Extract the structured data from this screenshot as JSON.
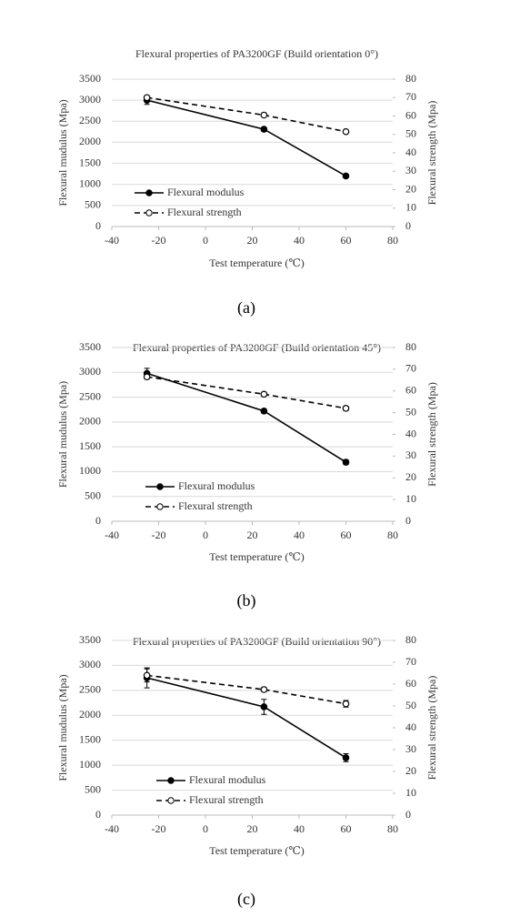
{
  "chart_data": [
    {
      "type": "line",
      "title": "Flexural properties of PA3200GF (Build orientation 0°)",
      "caption": "(a)",
      "x_label": "Test temperature (℃)",
      "y_label": "Flexural mudulus (Mpa)",
      "y2_label": "Flexural strength (Mpa)",
      "x": [
        -25,
        25,
        60
      ],
      "series": [
        {
          "name": "Flexural modulus",
          "color": "#000000",
          "line_style": "solid",
          "marker": "filled",
          "axis": "y",
          "values": [
            3000,
            2310,
            1200
          ],
          "errors": [
            100,
            50,
            30
          ]
        },
        {
          "name": "Flexural strength",
          "color": "#000000",
          "line_style": "dashed",
          "marker": "open",
          "axis": "y2",
          "values": [
            70,
            60.5,
            51.5
          ],
          "errors": [
            1,
            0.8,
            0.8
          ]
        }
      ],
      "xlim": [
        -40,
        80
      ],
      "xticks": [
        -40,
        -20,
        0,
        20,
        40,
        60,
        80
      ],
      "ylim": [
        0,
        3500
      ],
      "yticks": [
        0,
        500,
        1000,
        1500,
        2000,
        2500,
        3000,
        3500
      ],
      "y2lim": [
        0,
        80
      ],
      "y2ticks": [
        0,
        10,
        20,
        30,
        40,
        50,
        60,
        70,
        80
      ],
      "grid": true
    },
    {
      "type": "line",
      "title": "Flexural properties of PA3200GF (Build orientation 45°)",
      "caption": "(b)",
      "x_label": "Test temperature (℃)",
      "y_label": "Flexural mudulus (Mpa)",
      "y2_label": "Flexural strength (Mpa)",
      "x": [
        -25,
        25,
        60
      ],
      "series": [
        {
          "name": "Flexural modulus",
          "color": "#000000",
          "line_style": "solid",
          "marker": "filled",
          "axis": "y",
          "values": [
            2980,
            2220,
            1190
          ],
          "errors": [
            100,
            40,
            50
          ]
        },
        {
          "name": "Flexural strength",
          "color": "#000000",
          "line_style": "dashed",
          "marker": "open",
          "axis": "y2",
          "values": [
            66.5,
            58.5,
            52
          ],
          "errors": [
            1,
            0.8,
            1
          ]
        }
      ],
      "xlim": [
        -40,
        80
      ],
      "xticks": [
        -40,
        -20,
        0,
        20,
        40,
        60,
        80
      ],
      "ylim": [
        0,
        3500
      ],
      "yticks": [
        0,
        500,
        1000,
        1500,
        2000,
        2500,
        3000,
        3500
      ],
      "y2lim": [
        0,
        80
      ],
      "y2ticks": [
        0,
        10,
        20,
        30,
        40,
        50,
        60,
        70,
        80
      ],
      "grid": true
    },
    {
      "type": "line",
      "title": "Flexural properties of PA3200GF (Build orientation 90°)",
      "caption": "(c)",
      "x_label": "Test temperature (℃)",
      "y_label": "Flexural mudulus (Mpa)",
      "y2_label": "Flexural strength (Mpa)",
      "x": [
        -25,
        25,
        60
      ],
      "series": [
        {
          "name": "Flexural modulus",
          "color": "#000000",
          "line_style": "solid",
          "marker": "filled",
          "axis": "y",
          "values": [
            2750,
            2170,
            1150
          ],
          "errors": [
            200,
            150,
            80
          ]
        },
        {
          "name": "Flexural strength",
          "color": "#000000",
          "line_style": "dashed",
          "marker": "open",
          "axis": "y2",
          "values": [
            64,
            57.5,
            51
          ],
          "errors": [
            3,
            1,
            1.5
          ]
        }
      ],
      "xlim": [
        -40,
        80
      ],
      "xticks": [
        -40,
        -20,
        0,
        20,
        40,
        60,
        80
      ],
      "ylim": [
        0,
        3500
      ],
      "yticks": [
        0,
        500,
        1000,
        1500,
        2000,
        2500,
        3000,
        3500
      ],
      "y2lim": [
        0,
        80
      ],
      "y2ticks": [
        0,
        10,
        20,
        30,
        40,
        50,
        60,
        70,
        80
      ],
      "grid": true
    }
  ]
}
